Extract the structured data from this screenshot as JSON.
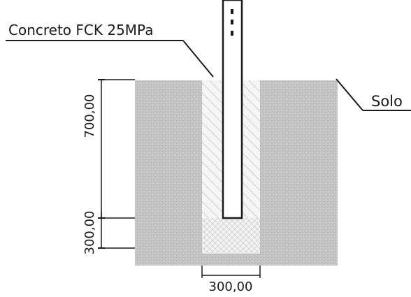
{
  "labels": {
    "concrete": "Concreto FCK 25MPa",
    "soil": "Solo"
  },
  "dimensions": {
    "upper_depth": "700,00",
    "lower_depth": "300,00",
    "width": "300,00"
  },
  "colors": {
    "soil": "#bdbdbd",
    "concrete": "#f3f3f3",
    "hatch": "#bfbfbf",
    "post": "#ffffff",
    "line": "#1a1a1a"
  }
}
